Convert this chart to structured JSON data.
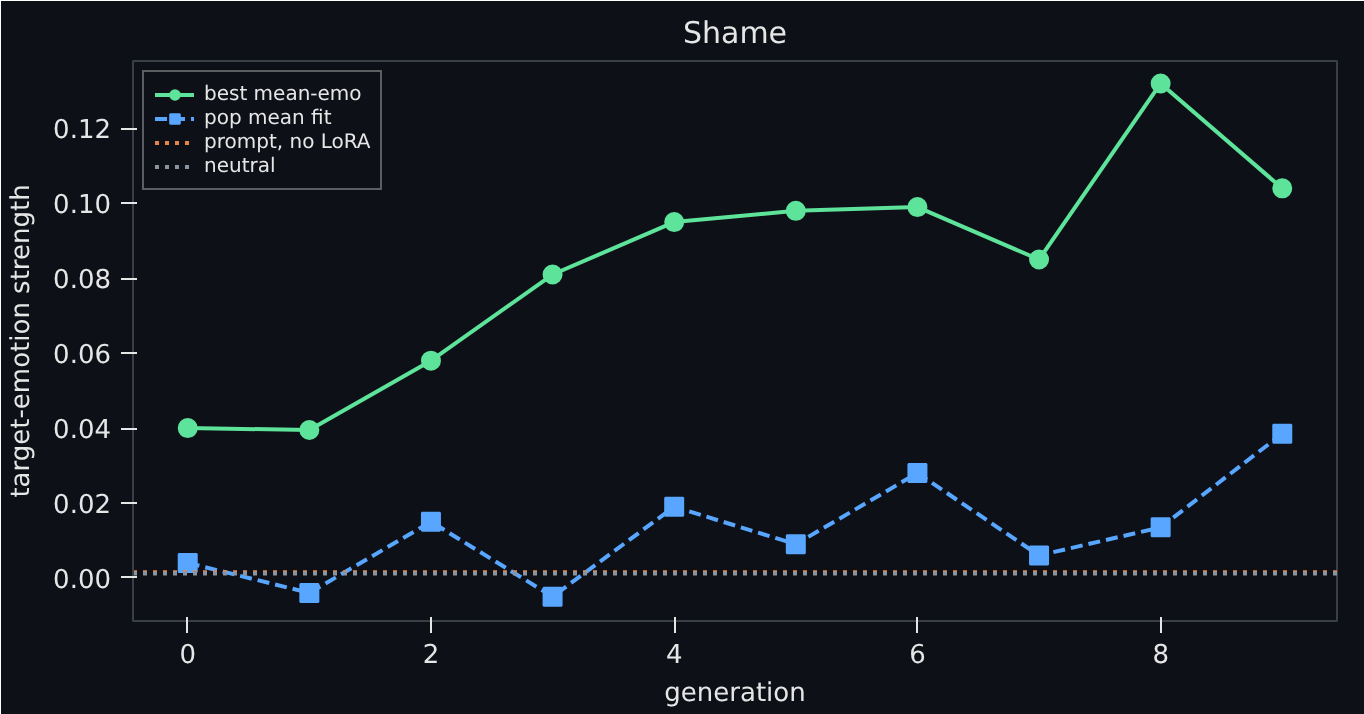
{
  "chart_data": {
    "type": "line",
    "title": "Shame",
    "xlabel": "generation",
    "ylabel": "target-emotion strength",
    "x": [
      0,
      1,
      2,
      3,
      4,
      5,
      6,
      7,
      8,
      9
    ],
    "series": [
      {
        "name": "best mean-emo",
        "color": "#5ee39b",
        "marker": "circle",
        "line_style": "solid",
        "values": [
          0.04,
          0.0395,
          0.058,
          0.081,
          0.095,
          0.098,
          0.099,
          0.085,
          0.132,
          0.104
        ]
      },
      {
        "name": "pop mean fit",
        "color": "#58a6ff",
        "marker": "square",
        "line_style": "dashed",
        "values": [
          0.004,
          -0.004,
          0.015,
          -0.005,
          0.019,
          0.009,
          0.028,
          0.006,
          0.0135,
          0.0385
        ]
      }
    ],
    "ref_lines": [
      {
        "axis": "y",
        "value": 0.0015,
        "label": "prompt, no LoRA",
        "color": "#e3864a",
        "line_style": "dotted"
      },
      {
        "axis": "y",
        "value": 0.0012,
        "label": "neutral",
        "color": "#8b949e",
        "line_style": "dotted"
      }
    ],
    "xlim": [
      -0.45,
      9.45
    ],
    "ylim": [
      -0.0115,
      0.138
    ],
    "xticks": [
      0,
      2,
      4,
      6,
      8
    ],
    "yticks": [
      {
        "value": 0,
        "label": "0.00"
      },
      {
        "value": 0.02,
        "label": "0.02"
      },
      {
        "value": 0.04,
        "label": "0.04"
      },
      {
        "value": 0.06,
        "label": "0.06"
      },
      {
        "value": 0.08,
        "label": "0.08"
      },
      {
        "value": 0.1,
        "label": "0.10"
      },
      {
        "value": 0.12,
        "label": "0.12"
      }
    ],
    "grid": false,
    "legend": "top left"
  }
}
